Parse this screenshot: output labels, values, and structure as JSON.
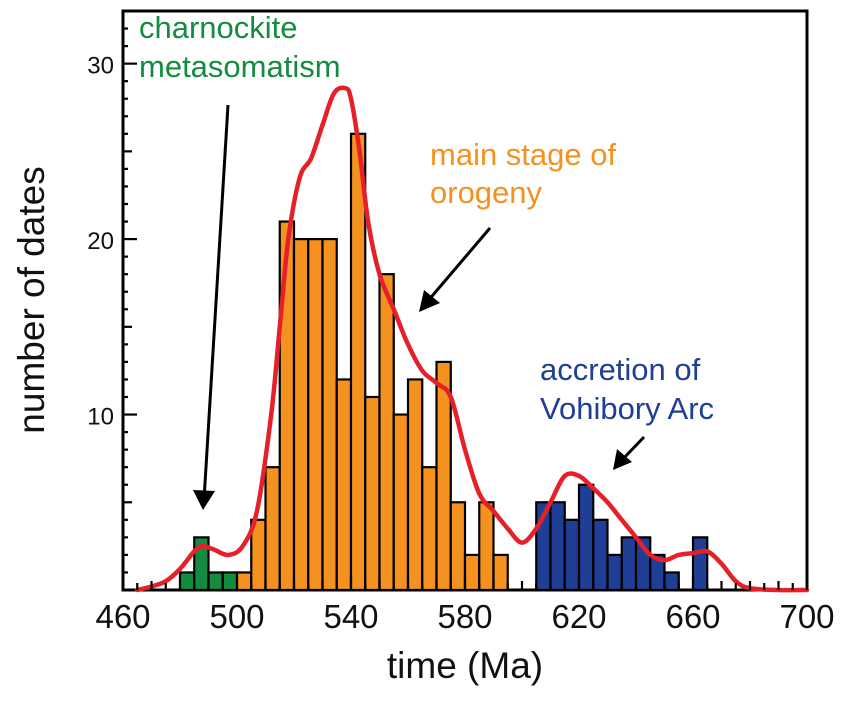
{
  "chart_data": {
    "type": "bar",
    "xlabel": "time (Ma)",
    "ylabel": "number of dates",
    "xlim": [
      460,
      700
    ],
    "ylim": [
      0,
      33
    ],
    "x_ticks": [
      460,
      500,
      540,
      580,
      620,
      660,
      700
    ],
    "y_ticks": [
      10,
      20,
      30
    ],
    "bin_width": 5,
    "grid": false,
    "series": [
      {
        "name": "charnockite metasomatism",
        "color": "#138c3f",
        "bins": [
          {
            "start": 480,
            "value": 1
          },
          {
            "start": 485,
            "value": 3
          },
          {
            "start": 490,
            "value": 1
          },
          {
            "start": 495,
            "value": 1
          }
        ]
      },
      {
        "name": "main stage of orogeny",
        "color": "#f5911e",
        "bins": [
          {
            "start": 500,
            "value": 1
          },
          {
            "start": 505,
            "value": 4
          },
          {
            "start": 510,
            "value": 7
          },
          {
            "start": 515,
            "value": 21
          },
          {
            "start": 520,
            "value": 20
          },
          {
            "start": 525,
            "value": 20
          },
          {
            "start": 530,
            "value": 20
          },
          {
            "start": 535,
            "value": 12
          },
          {
            "start": 540,
            "value": 26
          },
          {
            "start": 545,
            "value": 11
          },
          {
            "start": 550,
            "value": 18
          },
          {
            "start": 555,
            "value": 10
          },
          {
            "start": 560,
            "value": 12
          },
          {
            "start": 565,
            "value": 7
          },
          {
            "start": 570,
            "value": 13
          },
          {
            "start": 575,
            "value": 5
          },
          {
            "start": 580,
            "value": 2
          },
          {
            "start": 585,
            "value": 5
          },
          {
            "start": 590,
            "value": 2
          }
        ]
      },
      {
        "name": "accretion of Vohibory Arc",
        "color": "#1f3e96",
        "bins": [
          {
            "start": 605,
            "value": 5
          },
          {
            "start": 610,
            "value": 5
          },
          {
            "start": 615,
            "value": 4
          },
          {
            "start": 620,
            "value": 6
          },
          {
            "start": 625,
            "value": 4
          },
          {
            "start": 630,
            "value": 2
          },
          {
            "start": 635,
            "value": 3
          },
          {
            "start": 640,
            "value": 3
          },
          {
            "start": 645,
            "value": 2
          },
          {
            "start": 650,
            "value": 1
          },
          {
            "start": 655,
            "value": 0
          },
          {
            "start": 660,
            "value": 3
          }
        ]
      }
    ],
    "density_curve": {
      "color": "#e52028",
      "x": [
        465,
        470,
        475,
        480,
        485,
        488,
        492,
        497,
        502,
        507,
        512,
        515,
        518,
        522,
        526,
        530,
        534,
        538,
        540,
        543,
        546,
        550,
        555,
        560,
        565,
        570,
        575,
        580,
        585,
        590,
        595,
        600,
        605,
        610,
        615,
        620,
        625,
        630,
        635,
        640,
        645,
        650,
        655,
        660,
        665,
        670,
        675,
        680,
        690,
        700
      ],
      "y": [
        0,
        0.2,
        0.5,
        1.2,
        2.2,
        2.5,
        2.3,
        2.0,
        2.5,
        4.5,
        10,
        15,
        20,
        23.5,
        24.6,
        26.5,
        28.3,
        28.6,
        28,
        25,
        21,
        18,
        16,
        14,
        12.5,
        11.8,
        11,
        8,
        5.5,
        4.5,
        3.5,
        2.7,
        3.5,
        5,
        6.5,
        6.5,
        5.8,
        5,
        4,
        3,
        2,
        1.7,
        2,
        2.1,
        2.2,
        1.5,
        0.5,
        0.1,
        0,
        0
      ]
    },
    "annotations": [
      {
        "label_lines": [
          "charnockite",
          "metasomatism"
        ],
        "color": "#138c3f"
      },
      {
        "label_lines": [
          "main stage of",
          "orogeny"
        ],
        "color": "#f5911e"
      },
      {
        "label_lines": [
          "accretion of",
          "Vohibory Arc"
        ],
        "color": "#1f3e96"
      }
    ]
  }
}
